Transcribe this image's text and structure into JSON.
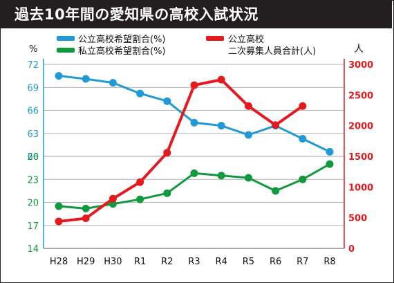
{
  "title": "過去10年間の愛知県の高校入試状況",
  "colors": {
    "public": "#1f9ad6",
    "private": "#12993d",
    "entrants": "#e51a1f",
    "title_bg": "#231f20"
  },
  "chart_data": {
    "type": "line",
    "title": "過去10年間の愛知県の高校入試状況",
    "categories": [
      "H28",
      "H29",
      "H30",
      "R1",
      "R2",
      "R3",
      "R4",
      "R5",
      "R6",
      "R7",
      "R8"
    ],
    "left_axis": {
      "unit": "%",
      "upper_ticks": [
        72,
        69,
        66,
        63,
        60
      ],
      "lower_ticks": [
        26,
        23,
        20,
        17,
        14
      ],
      "upper_range": [
        60,
        72
      ],
      "lower_range": [
        14,
        26
      ]
    },
    "right_axis": {
      "unit": "人",
      "ticks": [
        3000,
        2500,
        2000,
        1500,
        1000,
        500,
        0
      ],
      "range": [
        0,
        3000
      ]
    },
    "legend": {
      "public": "公立高校希望割合(%)",
      "private": "私立高校希望割合(%)",
      "entrants_line1": "公立高校",
      "entrants_line2": "二次募集人員合計(人)"
    },
    "series": [
      {
        "name": "公立高校希望割合(%)",
        "axis": "left-upper",
        "values": [
          70.5,
          70.1,
          69.6,
          68.2,
          67.2,
          64.4,
          64.0,
          62.8,
          64.0,
          62.3,
          60.6
        ]
      },
      {
        "name": "私立高校希望割合(%)",
        "axis": "left-lower",
        "values": [
          19.5,
          19.2,
          19.8,
          20.4,
          21.2,
          23.8,
          23.5,
          23.2,
          21.5,
          23.0,
          25.0
        ]
      },
      {
        "name": "公立高校二次募集人員合計(人)",
        "axis": "right",
        "values": [
          440,
          490,
          810,
          1080,
          1560,
          2660,
          2750,
          2320,
          2010,
          2320,
          null
        ]
      }
    ]
  }
}
